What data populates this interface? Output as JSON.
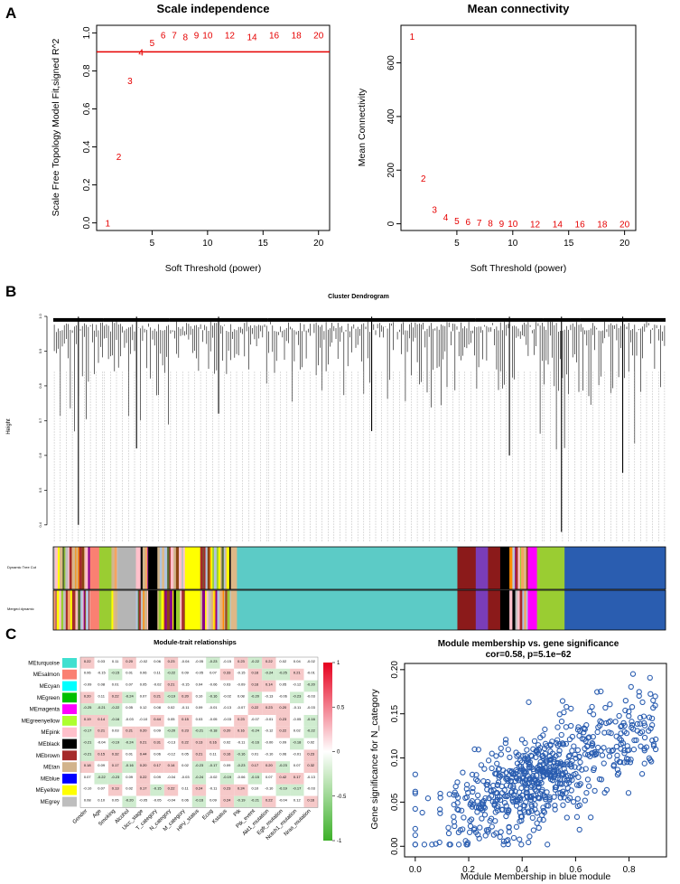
{
  "panel_labels": [
    "A",
    "B",
    "C"
  ],
  "colors": {
    "red": "#e60000",
    "blue_point": "#2a5db0",
    "turquoise": "#5ccbc6",
    "blue": "#2a5db0"
  },
  "chart_data": [
    {
      "id": "scale_independence",
      "type": "scatter",
      "title": "Scale independence",
      "xlabel": "Soft Threshold (power)",
      "ylabel": "Scale Free Topology Model Fit,signed R^2",
      "xlim": [
        0,
        21
      ],
      "ylim": [
        -0.04,
        1.04
      ],
      "xticks": [
        5,
        10,
        15,
        20
      ],
      "yticks": [
        "0.0",
        "0.2",
        "0.4",
        "0.6",
        "0.8",
        "1.0"
      ],
      "threshold_line": 0.9,
      "powers": [
        1,
        2,
        3,
        4,
        5,
        6,
        7,
        8,
        9,
        10,
        12,
        14,
        16,
        18,
        20
      ],
      "values": [
        0.0,
        0.35,
        0.75,
        0.9,
        0.95,
        0.99,
        0.99,
        0.98,
        0.99,
        0.99,
        0.99,
        0.98,
        0.99,
        0.99,
        0.99
      ],
      "point_labels": [
        "1",
        "2",
        "3",
        "4",
        "5",
        "6",
        "7",
        "8",
        "9",
        "10",
        "12",
        "14",
        "16",
        "18",
        "20"
      ]
    },
    {
      "id": "mean_connectivity",
      "type": "scatter",
      "title": "Mean connectivity",
      "xlabel": "Soft Threshold (power)",
      "ylabel": "Mean Connectivity",
      "xlim": [
        0,
        21
      ],
      "ylim": [
        -25,
        740
      ],
      "xticks": [
        5,
        10,
        15,
        20
      ],
      "yticks": [
        "0",
        "200",
        "400",
        "600"
      ],
      "powers": [
        1,
        2,
        3,
        4,
        5,
        6,
        7,
        8,
        9,
        10,
        12,
        14,
        16,
        18,
        20
      ],
      "values": [
        700,
        170,
        55,
        25,
        12,
        8,
        5,
        3,
        2,
        1.5,
        1,
        0.5,
        0.4,
        0.3,
        0.2
      ],
      "point_labels": [
        "1",
        "2",
        "3",
        "4",
        "5",
        "6",
        "7",
        "8",
        "9",
        "10",
        "12",
        "14",
        "16",
        "18",
        "20"
      ]
    },
    {
      "id": "cluster_dendrogram",
      "type": "dendrogram",
      "title": "Cluster Dendrogram",
      "ylabel": "Height",
      "ylim": [
        0.35,
        1.0
      ],
      "yticks": [
        "0.4",
        "0.5",
        "0.6",
        "0.7",
        "0.8",
        "0.9",
        "1.0"
      ],
      "track_labels": [
        "Dynamic Tree Cut",
        "Merged dynamic"
      ],
      "clusters": [
        {
          "start": 0.0,
          "end": 0.082,
          "min_height": 0.4
        },
        {
          "start": 0.082,
          "end": 0.19,
          "min_height": 0.62
        },
        {
          "start": 0.19,
          "end": 0.35,
          "min_height": 0.72
        },
        {
          "start": 0.35,
          "end": 0.69,
          "min_height": 0.67
        },
        {
          "start": 0.69,
          "end": 0.8,
          "min_height": 0.6
        },
        {
          "start": 0.8,
          "end": 0.86,
          "min_height": 0.38
        },
        {
          "start": 0.86,
          "end": 1.0,
          "min_height": 0.55
        }
      ]
    },
    {
      "id": "module_trait",
      "type": "heatmap",
      "title": "Module-trait relationships",
      "modules": [
        "MEturquoise",
        "MEsalmon",
        "MEcyan",
        "MEgreen",
        "MEmagenta",
        "MEgreenyellow",
        "MEpink",
        "MEblack",
        "MEbrown",
        "MEtan",
        "MEblue",
        "MEyellow",
        "MEgrey"
      ],
      "module_colors": [
        "#40e0d0",
        "#fa8072",
        "#00ffff",
        "#00c000",
        "#ff00ff",
        "#adff2f",
        "#ffc0cb",
        "#000000",
        "#a52a2a",
        "#d2b48c",
        "#0000ff",
        "#ffff00",
        "#bebebe"
      ],
      "traits": [
        "Gender",
        "Age",
        "Smoking",
        "Alcohol",
        "Uicc_stage",
        "T_category",
        "N_category",
        "M_category",
        "HPV_status",
        "Ecog",
        "Kstatus",
        "Ptk",
        "Ptk_event",
        "Akt1_mutation",
        "Egfr_mutation",
        "Notch1_mutation",
        "Nras_mutation"
      ],
      "legend_ticks": [
        "1",
        "0.5",
        "0",
        "-0.5",
        "-1"
      ]
    },
    {
      "id": "mm_vs_gs",
      "type": "scatter",
      "title": "Module membership vs. gene significance",
      "subtitle": "cor=0.58, p=5.1e−62",
      "xlabel": "Module Membership in blue module",
      "ylabel": "Gene significance for N_category",
      "xlim": [
        -0.04,
        0.94
      ],
      "ylim": [
        -0.012,
        0.207
      ],
      "xticks": [
        "0.0",
        "0.2",
        "0.4",
        "0.6",
        "0.8"
      ],
      "yticks": [
        "0.00",
        "0.05",
        "0.10",
        "0.15",
        "0.20"
      ],
      "correlation": 0.58,
      "n_points": 700
    }
  ]
}
